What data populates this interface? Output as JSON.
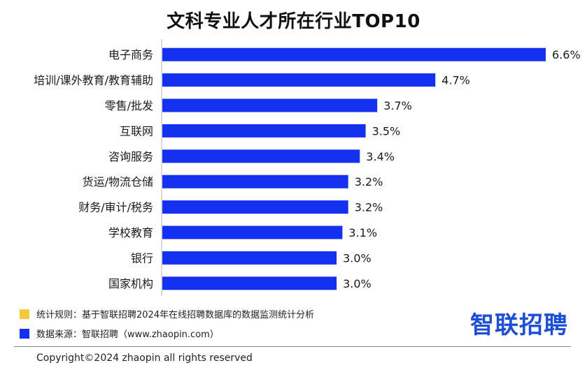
{
  "chart_data": {
    "type": "bar",
    "orientation": "horizontal",
    "title": "文科专业人才所在行业TOP10",
    "categories": [
      "电子商务",
      "培训/课外教育/教育辅助",
      "零售/批发",
      "互联网",
      "咨询服务",
      "货运/物流仓储",
      "财务/审计/税务",
      "学校教育",
      "银行",
      "国家机构"
    ],
    "values": [
      6.6,
      4.7,
      3.7,
      3.5,
      3.4,
      3.2,
      3.2,
      3.1,
      3.0,
      3.0
    ],
    "value_labels": [
      "6.6%",
      "4.7%",
      "3.7%",
      "3.5%",
      "3.4%",
      "3.2%",
      "3.2%",
      "3.1%",
      "3.0%",
      "3.0%"
    ],
    "unit": "%",
    "xlim": [
      0,
      6.6
    ],
    "grid": false,
    "bar_color": "#1431f0"
  },
  "legend": [
    {
      "color": "#f5c842",
      "text": "统计规则：基于智联招聘2024年在线招聘数据库的数据监测统计分析"
    },
    {
      "color": "#1431f0",
      "text": "数据来源：智联招聘（www.zhaopin.com）"
    }
  ],
  "logo": {
    "text": "智联招聘",
    "color": "#1d4fd6"
  },
  "footer": {
    "copyright": "Copyright©2024 zhaopin all rights reserved"
  }
}
